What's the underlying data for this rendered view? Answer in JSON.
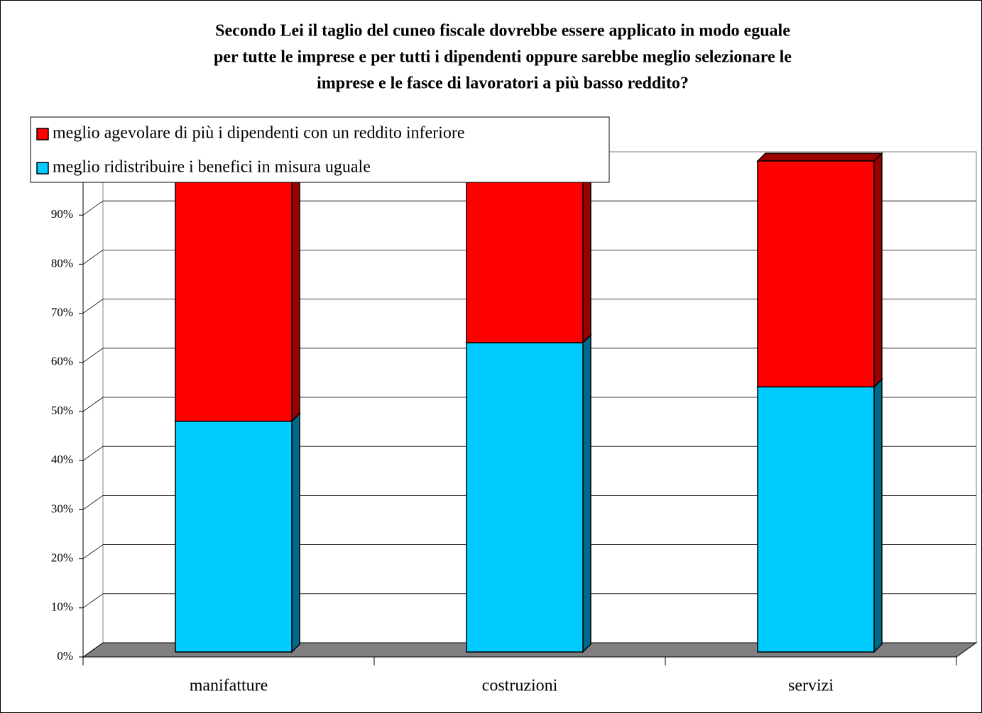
{
  "chart_data": {
    "type": "bar3d_stacked",
    "title": [
      "Secondo Lei il taglio del cuneo fiscale dovrebbe essere applicato in modo eguale",
      "per tutte le imprese e per tutti i dipendenti oppure sarebbe meglio selezionare le",
      "imprese e le fasce di lavoratori a più basso reddito?"
    ],
    "categories": [
      "manifatture",
      "costruzioni",
      "servizi"
    ],
    "series": [
      {
        "name": "meglio ridistribuire i benefici in misura uguale",
        "color": "#00ccff",
        "side_color": "#006a8a",
        "values": [
          47,
          63,
          54
        ]
      },
      {
        "name": "meglio agevolare di più i dipendenti con un reddito inferiore",
        "color": "#ff0000",
        "side_color": "#990000",
        "values": [
          53,
          37,
          46
        ]
      }
    ],
    "ylim": [
      0,
      100
    ],
    "yticks": [
      {
        "value": 0,
        "label": "0%"
      },
      {
        "value": 10,
        "label": "10%"
      },
      {
        "value": 20,
        "label": "20%"
      },
      {
        "value": 30,
        "label": "30%"
      },
      {
        "value": 40,
        "label": "40%"
      },
      {
        "value": 50,
        "label": "50%"
      },
      {
        "value": 60,
        "label": "60%"
      },
      {
        "value": 70,
        "label": "70%"
      },
      {
        "value": 80,
        "label": "80%"
      },
      {
        "value": 90,
        "label": "90%"
      }
    ],
    "grid": true,
    "legend": "top-left"
  }
}
